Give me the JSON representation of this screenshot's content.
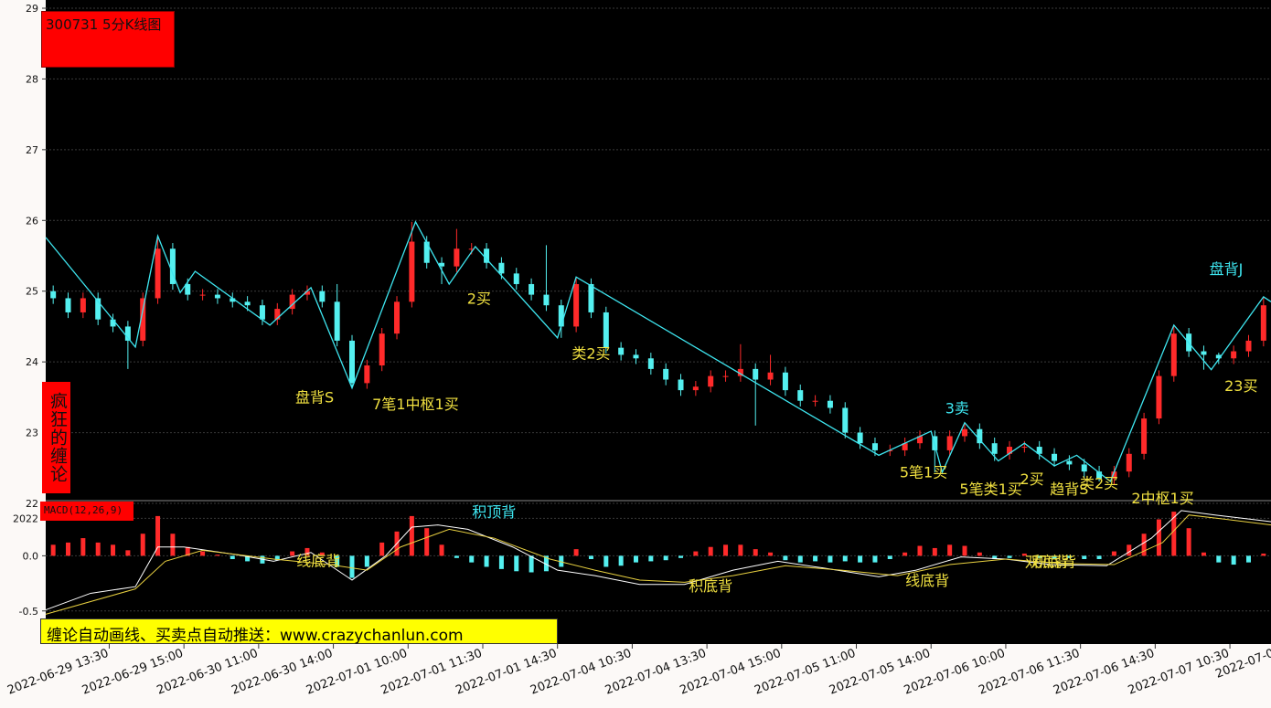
{
  "header": {
    "title": "300731 5分K线图",
    "side_label": "疯狂的缠论",
    "banner": "缠论自动画线、买卖点自动推送：www.crazychanlun.com"
  },
  "chart_data": [
    {
      "type": "candlestick",
      "x": [
        2,
        6,
        10,
        14,
        18,
        22,
        26,
        30,
        34,
        38,
        42,
        46,
        50,
        54,
        58,
        62,
        66,
        70,
        74,
        78,
        82,
        86,
        90,
        94,
        98,
        102,
        106,
        110,
        114,
        118,
        122,
        126,
        130,
        134,
        138,
        142,
        146,
        150,
        154,
        158,
        162,
        166,
        170,
        174,
        178,
        182,
        186,
        190,
        194,
        198,
        202,
        206,
        210,
        214,
        218,
        222,
        226,
        230,
        234,
        238,
        242,
        246,
        250,
        254,
        258,
        262,
        266,
        270,
        274,
        278,
        282,
        286,
        290,
        294,
        298,
        302,
        306,
        310,
        314,
        318,
        322,
        326
      ],
      "open": [
        25.0,
        24.9,
        24.7,
        24.9,
        24.6,
        24.5,
        24.3,
        24.9,
        25.6,
        25.1,
        24.95,
        24.95,
        24.9,
        24.85,
        24.8,
        24.6,
        24.75,
        24.95,
        25.0,
        24.85,
        24.3,
        23.7,
        23.95,
        24.4,
        24.85,
        25.7,
        25.4,
        25.35,
        25.6,
        25.6,
        25.4,
        25.25,
        25.1,
        24.95,
        24.8,
        24.5,
        25.1,
        24.7,
        24.2,
        24.1,
        24.05,
        23.9,
        23.75,
        23.6,
        23.65,
        23.8,
        23.8,
        23.9,
        23.75,
        23.85,
        23.6,
        23.45,
        23.45,
        23.35,
        23.0,
        22.85,
        22.75,
        22.75,
        22.85,
        22.95,
        22.75,
        22.95,
        23.05,
        22.85,
        22.7,
        22.8,
        22.8,
        22.7,
        22.6,
        22.55,
        22.45,
        22.35,
        22.45,
        22.7,
        23.2,
        23.8,
        24.4,
        24.15,
        24.1,
        24.05,
        24.15,
        24.3
      ],
      "high": [
        25.08,
        24.98,
        24.98,
        24.98,
        24.68,
        24.58,
        24.98,
        25.78,
        25.68,
        25.18,
        25.03,
        25.03,
        24.98,
        24.93,
        24.88,
        24.83,
        25.03,
        25.08,
        25.08,
        25.1,
        24.38,
        24.03,
        24.48,
        24.93,
        25.98,
        25.78,
        25.48,
        25.88,
        25.68,
        25.68,
        25.48,
        25.33,
        25.18,
        25.65,
        24.88,
        25.2,
        25.18,
        24.78,
        24.28,
        24.18,
        24.13,
        23.98,
        23.83,
        23.73,
        23.88,
        23.88,
        24.25,
        23.98,
        24.1,
        23.93,
        23.68,
        23.53,
        23.53,
        23.43,
        23.08,
        22.93,
        22.83,
        22.93,
        23.03,
        23.03,
        23.03,
        23.14,
        23.13,
        22.93,
        22.88,
        22.88,
        22.88,
        22.78,
        22.68,
        22.63,
        22.53,
        22.53,
        22.78,
        23.28,
        23.88,
        24.52,
        24.48,
        24.23,
        24.13,
        24.23,
        24.38,
        24.92
      ],
      "low": [
        24.82,
        24.62,
        24.62,
        24.52,
        24.42,
        23.9,
        24.22,
        24.82,
        25.02,
        24.87,
        24.87,
        24.82,
        24.77,
        24.72,
        24.52,
        24.52,
        24.67,
        24.87,
        24.77,
        24.22,
        23.63,
        23.62,
        23.87,
        24.32,
        24.77,
        25.32,
        25.1,
        25.27,
        25.52,
        25.32,
        25.17,
        25.02,
        24.87,
        24.72,
        24.34,
        24.42,
        24.62,
        24.12,
        24.02,
        23.97,
        23.82,
        23.67,
        23.52,
        23.52,
        23.57,
        23.72,
        23.72,
        23.1,
        23.67,
        23.52,
        23.37,
        23.37,
        23.27,
        22.92,
        22.77,
        22.67,
        22.67,
        22.67,
        22.77,
        22.44,
        22.67,
        22.87,
        22.77,
        22.6,
        22.62,
        22.72,
        22.62,
        22.52,
        22.47,
        22.37,
        22.31,
        22.27,
        22.37,
        22.62,
        23.12,
        23.72,
        24.07,
        23.89,
        23.97,
        23.97,
        24.07,
        24.22
      ],
      "close": [
        24.9,
        24.7,
        24.9,
        24.6,
        24.5,
        24.3,
        24.9,
        25.6,
        25.1,
        24.95,
        24.95,
        24.9,
        24.85,
        24.8,
        24.6,
        24.75,
        24.95,
        25.0,
        24.85,
        24.3,
        23.7,
        23.95,
        24.4,
        24.85,
        25.7,
        25.4,
        25.35,
        25.6,
        25.6,
        25.4,
        25.25,
        25.1,
        24.95,
        24.8,
        24.5,
        25.1,
        24.7,
        24.2,
        24.1,
        24.05,
        23.9,
        23.75,
        23.6,
        23.65,
        23.8,
        23.8,
        23.9,
        23.75,
        23.85,
        23.6,
        23.45,
        23.45,
        23.35,
        23.0,
        22.85,
        22.75,
        22.75,
        22.85,
        22.95,
        22.75,
        22.95,
        23.05,
        22.85,
        22.7,
        22.8,
        22.8,
        22.7,
        22.6,
        22.55,
        22.45,
        22.35,
        22.45,
        22.7,
        23.2,
        23.8,
        24.4,
        24.15,
        24.1,
        24.05,
        24.15,
        24.3,
        24.8
      ],
      "up_color": "#ff2a2a",
      "down_color": "#54f0f0",
      "xlim": [
        0,
        328
      ],
      "xticks": [
        {
          "value": 17,
          "label": "2022-06-29 13:30"
        },
        {
          "value": 37,
          "label": "2022-06-29 15:00"
        },
        {
          "value": 57,
          "label": "2022-06-30 11:00"
        },
        {
          "value": 77,
          "label": "2022-06-30 14:00"
        },
        {
          "value": 97,
          "label": "2022-07-01 10:00"
        },
        {
          "value": 117,
          "label": "2022-07-01 11:30"
        },
        {
          "value": 137,
          "label": "2022-07-01 14:30"
        },
        {
          "value": 157,
          "label": "2022-07-04 10:30"
        },
        {
          "value": 177,
          "label": "2022-07-04 13:30"
        },
        {
          "value": 197,
          "label": "2022-07-04 15:00"
        },
        {
          "value": 217,
          "label": "2022-07-05 11:00"
        },
        {
          "value": 237,
          "label": "2022-07-05 14:00"
        },
        {
          "value": 257,
          "label": "2022-07-06 10:00"
        },
        {
          "value": 277,
          "label": "2022-07-06 11:30"
        },
        {
          "value": 297,
          "label": "2022-07-06 14:30"
        },
        {
          "value": 317,
          "label": "2022-07-07 10:30"
        },
        {
          "value": 329,
          "label": "2022-07-0"
        }
      ],
      "ylim": [
        22,
        29
      ],
      "yticks": [
        22,
        23,
        24,
        25,
        26,
        27,
        28,
        29
      ],
      "grid": true,
      "strokes": {
        "color": "#3ee6f0",
        "x": [
          0,
          24,
          30,
          36,
          40,
          60,
          71,
          82,
          99,
          108,
          115,
          137,
          142,
          223,
          237,
          240,
          246,
          255,
          262,
          270,
          276,
          285,
          302,
          312,
          326,
          328
        ],
        "values": [
          25.76,
          24.21,
          25.78,
          24.98,
          25.28,
          24.52,
          25.05,
          23.63,
          25.98,
          25.1,
          25.63,
          24.34,
          25.2,
          22.68,
          23.02,
          22.44,
          23.14,
          22.6,
          22.85,
          22.53,
          22.68,
          22.31,
          24.52,
          23.89,
          24.92,
          24.85
        ]
      },
      "annotations": [
        {
          "text": "盘背S",
          "x": 72,
          "y": 23.43,
          "color": "#f0e040"
        },
        {
          "text": "7笔1中枢1买",
          "x": 99,
          "y": 23.33,
          "color": "#f0e040"
        },
        {
          "text": "2买",
          "x": 116,
          "y": 24.82,
          "color": "#f0e040"
        },
        {
          "text": "类2买",
          "x": 146,
          "y": 24.05,
          "color": "#f0e040"
        },
        {
          "text": "3卖",
          "x": 244,
          "y": 23.27,
          "color": "#3ee6f0"
        },
        {
          "text": "5笔1买",
          "x": 235,
          "y": 22.37,
          "color": "#f0e040"
        },
        {
          "text": "5笔类1买",
          "x": 253,
          "y": 22.13,
          "color": "#f0e040"
        },
        {
          "text": "2买",
          "x": 264,
          "y": 22.27,
          "color": "#f0e040"
        },
        {
          "text": "趋背S",
          "x": 274,
          "y": 22.13,
          "color": "#f0e040"
        },
        {
          "text": "类2买",
          "x": 282,
          "y": 22.21,
          "color": "#f0e040"
        },
        {
          "text": "2中枢1买",
          "x": 299,
          "y": 22.0,
          "color": "#f0e040"
        },
        {
          "text": "盘背J",
          "x": 316,
          "y": 25.24,
          "color": "#3ee6f0"
        },
        {
          "text": "23买",
          "x": 320,
          "y": 23.59,
          "color": "#f0e040"
        }
      ]
    },
    {
      "type": "macd",
      "title": "MACD(12,26,9)",
      "x": [
        2,
        6,
        10,
        14,
        18,
        22,
        26,
        30,
        34,
        38,
        42,
        46,
        50,
        54,
        58,
        62,
        66,
        70,
        74,
        78,
        82,
        86,
        90,
        94,
        98,
        102,
        106,
        110,
        114,
        118,
        122,
        126,
        130,
        134,
        138,
        142,
        146,
        150,
        154,
        158,
        162,
        166,
        170,
        174,
        178,
        182,
        186,
        190,
        194,
        198,
        202,
        206,
        210,
        214,
        218,
        222,
        226,
        230,
        234,
        238,
        242,
        246,
        250,
        254,
        258,
        262,
        266,
        270,
        274,
        278,
        282,
        286,
        290,
        294,
        298,
        302,
        306,
        310,
        314,
        318,
        322,
        326
      ],
      "values": [
        0.1,
        0.12,
        0.16,
        0.12,
        0.1,
        0.05,
        0.2,
        0.36,
        0.2,
        0.08,
        0.04,
        0.01,
        -0.03,
        -0.05,
        -0.07,
        -0.04,
        0.04,
        0.07,
        0.03,
        -0.1,
        -0.2,
        -0.1,
        0.12,
        0.22,
        0.36,
        0.25,
        0.1,
        -0.02,
        -0.06,
        -0.1,
        -0.12,
        -0.14,
        -0.15,
        -0.14,
        -0.1,
        0.06,
        -0.03,
        -0.1,
        -0.09,
        -0.06,
        -0.05,
        -0.04,
        -0.02,
        0.04,
        0.08,
        0.1,
        0.1,
        0.06,
        0.03,
        -0.04,
        -0.06,
        -0.05,
        -0.06,
        -0.05,
        -0.06,
        -0.06,
        -0.03,
        0.03,
        0.09,
        0.07,
        0.1,
        0.09,
        0.03,
        -0.03,
        -0.02,
        0.02,
        -0.02,
        -0.03,
        -0.02,
        -0.03,
        -0.03,
        0.04,
        0.1,
        0.2,
        0.33,
        0.4,
        0.25,
        0.03,
        -0.06,
        -0.08,
        -0.06,
        0.02
      ],
      "up_color": "#ff2a2a",
      "down_color": "#54f0f0",
      "lines": [
        {
          "color": "#ffffff",
          "x": [
            0,
            12,
            24,
            30,
            37,
            51,
            61,
            71,
            82,
            91,
            98,
            105,
            113,
            125,
            137,
            147,
            159,
            171,
            184,
            196,
            208,
            223,
            233,
            245,
            257,
            269,
            284,
            296,
            304,
            313,
            328
          ],
          "values": [
            -0.49,
            -0.34,
            -0.28,
            0.08,
            0.08,
            0.01,
            -0.05,
            0.03,
            -0.22,
            0.0,
            0.26,
            0.28,
            0.24,
            0.08,
            -0.13,
            -0.18,
            -0.26,
            -0.26,
            -0.13,
            -0.05,
            -0.11,
            -0.19,
            -0.13,
            -0.01,
            -0.03,
            -0.08,
            -0.09,
            0.16,
            0.41,
            0.37,
            0.31
          ]
        },
        {
          "color": "#e8d040",
          "x": [
            0,
            24,
            32,
            42,
            61,
            76,
            86,
            95,
            108,
            120,
            135,
            147,
            159,
            171,
            184,
            198,
            213,
            228,
            242,
            257,
            272,
            286,
            299,
            306,
            316,
            328
          ],
          "values": [
            -0.53,
            -0.3,
            -0.05,
            0.05,
            -0.03,
            -0.08,
            -0.13,
            0.08,
            0.24,
            0.16,
            -0.03,
            -0.13,
            -0.22,
            -0.24,
            -0.18,
            -0.09,
            -0.13,
            -0.18,
            -0.08,
            -0.03,
            -0.07,
            -0.08,
            0.12,
            0.37,
            0.33,
            0.28
          ]
        }
      ],
      "ylim": [
        -0.8,
        0.5
      ],
      "yticks": [
        {
          "value": 0.34,
          "label": "2022"
        },
        {
          "value": 0,
          "label": "0.0"
        },
        -0.5
      ],
      "grid": true,
      "annotations": [
        {
          "text": "积顶背",
          "x": 120,
          "y": 0.35,
          "color": "#3ee6f0"
        },
        {
          "text": "线底背",
          "x": 73,
          "y": -0.09,
          "color": "#f0e040"
        },
        {
          "text": "积底背",
          "x": 178,
          "y": -0.32,
          "color": "#f0e040"
        },
        {
          "text": "线底背",
          "x": 236,
          "y": -0.27,
          "color": "#f0e040"
        },
        {
          "text": "双底背",
          "x": 268,
          "y": -0.1,
          "color": "#f0e040"
        },
        {
          "text": "积底背",
          "x": 270,
          "y": -0.1,
          "color": "#f0e040"
        }
      ]
    }
  ]
}
